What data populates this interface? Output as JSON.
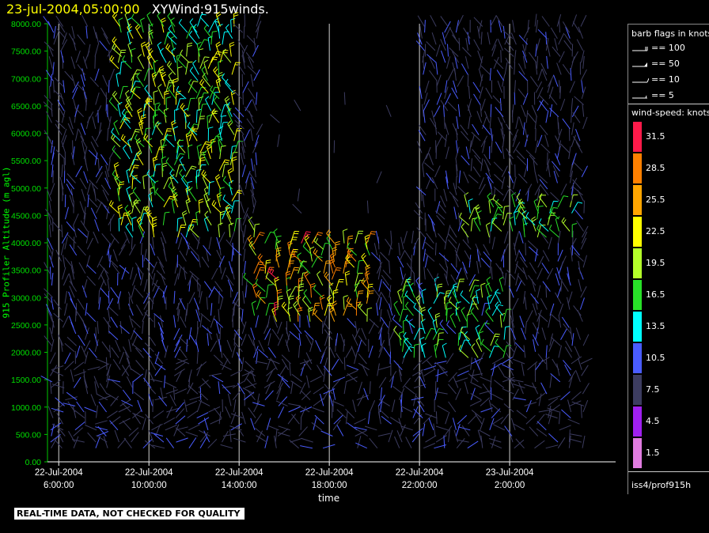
{
  "header": {
    "date": "23-jul-2004,05:00:00",
    "title": "XYWind:915winds."
  },
  "chart_data": {
    "type": "wind-barb time-height",
    "ylabel": "915 Profiler Altitude (m agl)",
    "xlabel": "time",
    "ylim": [
      0,
      8000
    ],
    "yticks": [
      "0.00",
      "500.00",
      "1000.00",
      "1500.00",
      "2000.00",
      "2500.00",
      "3000.00",
      "3500.00",
      "4000.00",
      "4500.00",
      "5000.00",
      "5500.00",
      "6000.00",
      "6500.00",
      "7000.00",
      "7500.00",
      "8000.00"
    ],
    "xlim_hours_from_0600": [
      -0.5,
      24.7
    ],
    "xticks": [
      {
        "hour": 0,
        "date": "22-Jul-2004",
        "time": "6:00:00"
      },
      {
        "hour": 4,
        "date": "22-Jul-2004",
        "time": "10:00:00"
      },
      {
        "hour": 8,
        "date": "22-Jul-2004",
        "time": "14:00:00"
      },
      {
        "hour": 12,
        "date": "22-Jul-2004",
        "time": "18:00:00"
      },
      {
        "hour": 16,
        "date": "22-Jul-2004",
        "time": "22:00:00"
      },
      {
        "hour": 20,
        "date": "23-Jul-2004",
        "time": "2:00:00"
      }
    ],
    "grid": "vertical lines at x ticks",
    "note": "dense field of wind barbs every profile; colors show wind speed in knots"
  },
  "legend": {
    "flags_title": "barb flags in knots",
    "flags": [
      "== 100",
      "== 50",
      "== 10",
      "== 5"
    ],
    "speed_title": "wind-speed: knots",
    "speed_bins": [
      {
        "label": "31.5",
        "color": "#ff1a4a"
      },
      {
        "label": "28.5",
        "color": "#ff8000"
      },
      {
        "label": "25.5",
        "color": "#ffa500"
      },
      {
        "label": "22.5",
        "color": "#ffff00"
      },
      {
        "label": "19.5",
        "color": "#b4ff2a"
      },
      {
        "label": "16.5",
        "color": "#28e028"
      },
      {
        "label": "13.5",
        "color": "#00ffff"
      },
      {
        "label": "10.5",
        "color": "#4a5cff"
      },
      {
        "label": "7.5",
        "color": "#3c3c60"
      },
      {
        "label": "4.5",
        "color": "#a020f0"
      },
      {
        "label": "1.5",
        "color": "#e07ce0"
      }
    ],
    "platform": "iss4/prof915h"
  },
  "footer": {
    "notice": "REAL-TIME DATA, NOT CHECKED FOR QUALITY"
  }
}
